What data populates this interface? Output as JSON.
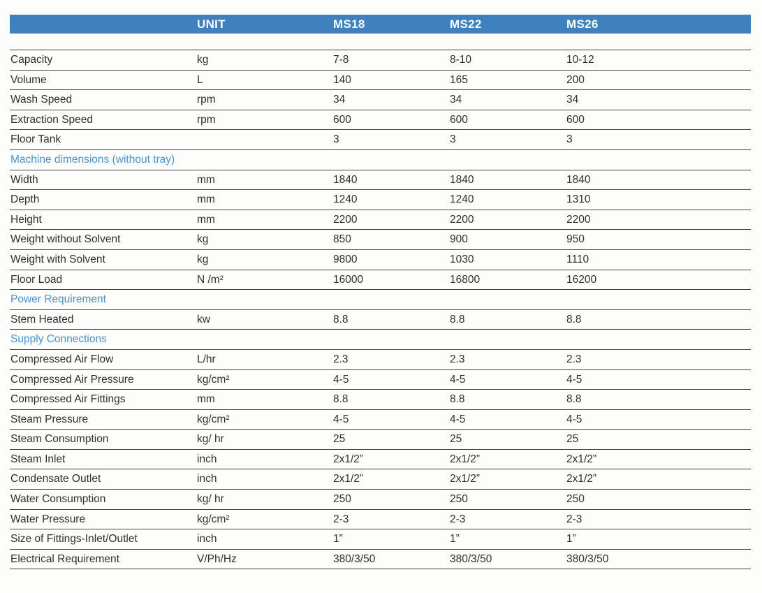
{
  "table": {
    "header": {
      "unit": "UNIT",
      "ms18": "MS18",
      "ms22": "MS22",
      "ms26": "MS26"
    },
    "rows": [
      {
        "type": "data",
        "label": "Capacity",
        "unit": "kg",
        "values": [
          "7-8",
          "8-10",
          "10-12"
        ]
      },
      {
        "type": "data",
        "label": "Volume",
        "unit": "L",
        "values": [
          "140",
          "165",
          "200"
        ]
      },
      {
        "type": "data",
        "label": "Wash Speed",
        "unit": "rpm",
        "values": [
          "34",
          "34",
          "34"
        ]
      },
      {
        "type": "data",
        "label": "Extraction Speed",
        "unit": "rpm",
        "values": [
          "600",
          "600",
          "600"
        ]
      },
      {
        "type": "data",
        "label": "Floor Tank",
        "unit": "",
        "values": [
          "3",
          "3",
          "3"
        ]
      },
      {
        "type": "section",
        "label": "Machine dimensions (without tray)"
      },
      {
        "type": "data",
        "label": "Width",
        "unit": "mm",
        "values": [
          "1840",
          "1840",
          "1840"
        ]
      },
      {
        "type": "data",
        "label": "Depth",
        "unit": "mm",
        "values": [
          "1240",
          "1240",
          "1310"
        ]
      },
      {
        "type": "data",
        "label": "Height",
        "unit": "mm",
        "values": [
          "2200",
          "2200",
          "2200"
        ]
      },
      {
        "type": "data",
        "label": "Weight without Solvent",
        "unit": "kg",
        "values": [
          "850",
          "900",
          "950"
        ]
      },
      {
        "type": "data",
        "label": "Weight with Solvent",
        "unit": "kg",
        "values": [
          "9800",
          "1030",
          "1110"
        ]
      },
      {
        "type": "data",
        "label": "Floor Load",
        "unit": "N /m²",
        "values": [
          "16000",
          "16800",
          "16200"
        ]
      },
      {
        "type": "section",
        "label": "Power Requirement"
      },
      {
        "type": "data",
        "label": "Stem Heated",
        "unit": "kw",
        "values": [
          "8.8",
          "8.8",
          "8.8"
        ]
      },
      {
        "type": "section",
        "label": "Supply Connections"
      },
      {
        "type": "data",
        "label": "Compressed Air Flow",
        "unit": "L/hr",
        "values": [
          "2.3",
          "2.3",
          "2.3"
        ]
      },
      {
        "type": "data",
        "label": "Compressed Air Pressure",
        "unit": "kg/cm²",
        "values": [
          "4-5",
          "4-5",
          "4-5"
        ]
      },
      {
        "type": "data",
        "label": "Compressed Air Fittings",
        "unit": "mm",
        "values": [
          "8.8",
          "8.8",
          "8.8"
        ]
      },
      {
        "type": "data",
        "label": "Steam Pressure",
        "unit": "kg/cm²",
        "values": [
          "4-5",
          "4-5",
          "4-5"
        ]
      },
      {
        "type": "data",
        "label": "Steam Consumption",
        "unit": "kg/ hr",
        "values": [
          "25",
          "25",
          "25"
        ]
      },
      {
        "type": "data",
        "label": "Steam Inlet",
        "unit": "inch",
        "values": [
          "2x1/2”",
          "2x1/2”",
          "2x1/2”"
        ]
      },
      {
        "type": "data",
        "label": "Condensate Outlet",
        "unit": "inch",
        "values": [
          "2x1/2”",
          "2x1/2”",
          "2x1/2”"
        ]
      },
      {
        "type": "data",
        "label": "Water Consumption",
        "unit": "kg/ hr",
        "values": [
          "250",
          "250",
          "250"
        ]
      },
      {
        "type": "data",
        "label": "Water Pressure",
        "unit": "kg/cm²",
        "values": [
          "2-3",
          "2-3",
          "2-3"
        ]
      },
      {
        "type": "data",
        "label": "Size of Fittings-Inlet/Outlet",
        "unit": "inch",
        "values": [
          "1”",
          "1”",
          "1”"
        ]
      },
      {
        "type": "data",
        "label": "Electrical Requirement",
        "unit": "V/Ph/Hz",
        "values": [
          "380/3/50",
          "380/3/50",
          "380/3/50"
        ]
      }
    ]
  },
  "colors": {
    "header_bg": "#3f81be",
    "header_text": "#ffffff",
    "section_text": "#4a93ce",
    "body_text": "#332e2b",
    "row_line": "#453f3b",
    "page_bg": "#fdfdfb"
  }
}
